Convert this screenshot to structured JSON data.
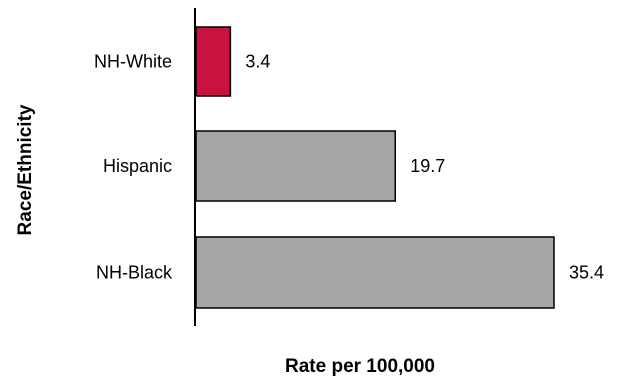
{
  "chart_data": {
    "type": "bar",
    "orientation": "horizontal",
    "categories": [
      "NH-White",
      "Hispanic",
      "NH-Black"
    ],
    "values": [
      3.4,
      19.7,
      35.4
    ],
    "value_labels": [
      "3.4",
      "19.7",
      "35.4"
    ],
    "bar_colors": [
      "#C8133F",
      "#A6A6A6",
      "#A6A6A6"
    ],
    "xlabel": "Rate per 100,000",
    "ylabel": "Race/Ethnicity",
    "xlim": [
      0,
      35.4
    ],
    "grid": false
  }
}
